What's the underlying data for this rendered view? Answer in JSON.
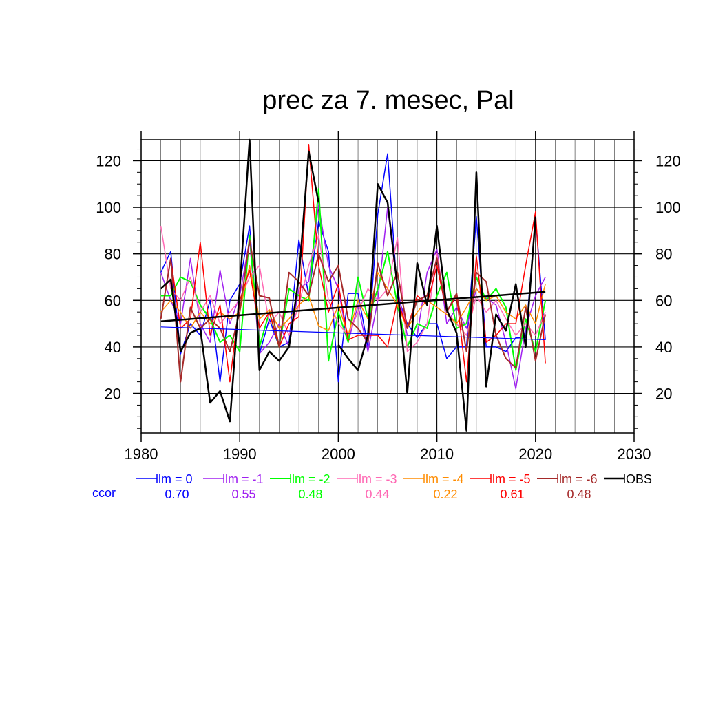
{
  "chart_data": {
    "type": "line",
    "title": "prec za 7. mesec, Pal",
    "xlim": [
      1980,
      2030
    ],
    "ylim": [
      3,
      129
    ],
    "x_ticks": [
      1980,
      1990,
      2000,
      2010,
      2020,
      2030
    ],
    "y_ticks": [
      20,
      40,
      60,
      80,
      100,
      120
    ],
    "x_tick_labels": [
      "1980",
      "1990",
      "2000",
      "2010",
      "2020",
      "2030"
    ],
    "y_tick_labels": [
      "20",
      "40",
      "60",
      "80",
      "100",
      "120"
    ],
    "grid": true,
    "x": [
      1982,
      1983,
      1984,
      1985,
      1986,
      1987,
      1988,
      1989,
      1990,
      1991,
      1992,
      1993,
      1994,
      1995,
      1996,
      1997,
      1998,
      1999,
      2000,
      2001,
      2002,
      2003,
      2004,
      2005,
      2006,
      2007,
      2008,
      2009,
      2010,
      2011,
      2012,
      2013,
      2014,
      2015,
      2016,
      2017,
      2018,
      2019,
      2020,
      2021
    ],
    "series": [
      {
        "name": "lm = 0",
        "color": "#0000ff",
        "width": 1.5,
        "ccor": "0.70",
        "values": [
          72,
          81,
          37,
          50,
          45,
          60,
          25,
          60,
          67,
          92,
          37,
          52,
          40,
          42,
          86,
          62,
          94,
          81,
          25,
          63,
          63,
          40,
          97,
          123,
          62,
          50,
          44,
          50,
          50,
          35,
          40,
          40,
          96,
          40,
          40,
          38,
          44,
          44,
          96,
          43
        ],
        "trend": [
          48.6,
          43.1
        ]
      },
      {
        "name": "lm = -1",
        "color": "#a020f0",
        "width": 1.5,
        "ccor": "0.55",
        "values": [
          72,
          60,
          50,
          78,
          50,
          42,
          73,
          50,
          62,
          86,
          37,
          42,
          50,
          40,
          65,
          68,
          101,
          75,
          65,
          42,
          58,
          38,
          60,
          100,
          65,
          45,
          45,
          72,
          82,
          50,
          57,
          48,
          65,
          61,
          58,
          42,
          22,
          48,
          62,
          70
        ],
        "trend": null
      },
      {
        "name": "lm = -2",
        "color": "#00ff00",
        "width": 2.0,
        "ccor": "0.48",
        "values": [
          62,
          62,
          70,
          68,
          58,
          52,
          42,
          45,
          38,
          88,
          40,
          55,
          40,
          65,
          62,
          60,
          108,
          34,
          55,
          42,
          70,
          52,
          65,
          81,
          58,
          40,
          50,
          48,
          62,
          72,
          48,
          50,
          70,
          60,
          65,
          57,
          30,
          52,
          38,
          60
        ],
        "trend": null
      },
      {
        "name": "lm = -3",
        "color": "#ff69b4",
        "width": 1.5,
        "ccor": "0.44",
        "values": [
          92,
          65,
          60,
          70,
          55,
          62,
          50,
          55,
          60,
          70,
          75,
          50,
          55,
          45,
          58,
          75,
          88,
          60,
          50,
          45,
          55,
          65,
          60,
          65,
          87,
          38,
          42,
          50,
          80,
          55,
          50,
          45,
          62,
          55,
          60,
          52,
          45,
          50,
          45,
          55
        ],
        "trend": null
      },
      {
        "name": "lm = -4",
        "color": "#ff8c00",
        "width": 1.5,
        "ccor": "0.22",
        "values": [
          55,
          60,
          55,
          48,
          55,
          50,
          55,
          52,
          55,
          75,
          52,
          56,
          48,
          52,
          58,
          62,
          49,
          47,
          58,
          45,
          60,
          52,
          72,
          65,
          58,
          48,
          55,
          60,
          57,
          54,
          50,
          57,
          65,
          60,
          62,
          55,
          52,
          58,
          50,
          67
        ],
        "trend": null
      },
      {
        "name": "lm = -5",
        "color": "#ff0000",
        "width": 1.5,
        "ccor": "0.61",
        "values": [
          52,
          78,
          48,
          52,
          85,
          45,
          58,
          25,
          60,
          73,
          48,
          55,
          40,
          50,
          53,
          127,
          75,
          55,
          67,
          43,
          45,
          45,
          45,
          40,
          60,
          48,
          62,
          58,
          75,
          55,
          62,
          25,
          79,
          42,
          45,
          50,
          50,
          75,
          98,
          33
        ],
        "trend": null
      },
      {
        "name": "lm = -6",
        "color": "#a52a2a",
        "width": 2.0,
        "ccor": "0.48",
        "values": [
          52,
          78,
          25,
          57,
          48,
          52,
          48,
          38,
          55,
          86,
          62,
          61,
          40,
          72,
          68,
          62,
          80,
          68,
          75,
          52,
          48,
          42,
          76,
          62,
          72,
          48,
          60,
          62,
          78,
          55,
          63,
          38,
          72,
          68,
          45,
          35,
          31,
          57,
          34,
          54
        ],
        "trend": null
      },
      {
        "name": "OBS",
        "color": "#000000",
        "width": 2.5,
        "ccor": "",
        "values": [
          65,
          69,
          38,
          46,
          48,
          16,
          21,
          8,
          65,
          129,
          30,
          38,
          34,
          40,
          70,
          124,
          102,
          null,
          41,
          35,
          30,
          45,
          110,
          102,
          66,
          20,
          76,
          58,
          92,
          56,
          46,
          4,
          115,
          23,
          54,
          47,
          67,
          40,
          96,
          null
        ],
        "trend": [
          51,
          63.7
        ]
      }
    ]
  },
  "legend": {
    "ccor_label": "ccor",
    "label_color": "#0000ff"
  }
}
